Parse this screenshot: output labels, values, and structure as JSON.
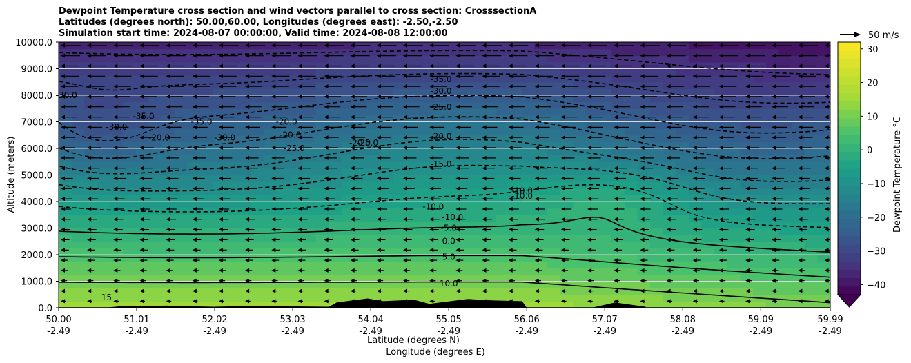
{
  "chart_data": {
    "type": "heatmap",
    "title_lines": [
      "Dewpoint Temperature cross section and wind vectors parallel to cross section: CrosssectionA",
      "Latitudes (degrees north): 50.00,60.00, Longitudes (degrees east): -2.50,-2.50",
      "Simulation start time: 2024-08-07 00:00:00, Valid time: 2024-08-08 12:00:00"
    ],
    "ylabel": "Altitude (meters)",
    "xlabel_lines": [
      "Latitude (degrees N)",
      "Longitude (degrees E)"
    ],
    "y_ticks": [
      "0.0",
      "1000.0",
      "2000.0",
      "3000.0",
      "4000.0",
      "5000.0",
      "6000.0",
      "7000.0",
      "8000.0",
      "9000.0",
      "10000.0"
    ],
    "ylim": [
      0,
      10000
    ],
    "x_ticks": [
      {
        "lat": "50.00",
        "lon": "-2.49"
      },
      {
        "lat": "51.01",
        "lon": "-2.49"
      },
      {
        "lat": "52.02",
        "lon": "-2.49"
      },
      {
        "lat": "53.03",
        "lon": "-2.49"
      },
      {
        "lat": "54.04",
        "lon": "-2.49"
      },
      {
        "lat": "55.05",
        "lon": "-2.49"
      },
      {
        "lat": "56.06",
        "lon": "-2.49"
      },
      {
        "lat": "57.07",
        "lon": "-2.49"
      },
      {
        "lat": "58.08",
        "lon": "-2.49"
      },
      {
        "lat": "59.09",
        "lon": "-2.49"
      },
      {
        "lat": "59.99",
        "lon": "-2.49"
      }
    ],
    "xlim": [
      50.0,
      59.99
    ],
    "colorbar": {
      "label": "Dewpoint Temperature $^\\circ$C",
      "ticks": [
        "30",
        "20",
        "10",
        "0",
        "−10",
        "−20",
        "−30",
        "−40"
      ],
      "range": [
        -43,
        32
      ],
      "extend": "min"
    },
    "quiver_key": "50 m/s",
    "contour_labels": [
      "-35.0",
      "-30.0",
      "-25.0",
      "-20.0",
      "-15.0",
      "-10.0",
      "-10.0",
      "-5.0",
      "0.0",
      "5.0",
      "10.0",
      "15",
      "-30.0",
      "-30.0",
      "-10.0",
      "-20.0",
      "-20.0",
      "-25.0",
      "-35.0",
      "-30.0",
      "-35.0",
      "-20.0",
      "-25.0",
      "-20.0",
      "-10.0"
    ],
    "grid": "horizontal",
    "legend": "none",
    "colormap_stops": [
      {
        "value": -43,
        "color": "#440154"
      },
      {
        "value": -35,
        "color": "#46327e"
      },
      {
        "value": -25,
        "color": "#365c8d"
      },
      {
        "value": -15,
        "color": "#277f8e"
      },
      {
        "value": -5,
        "color": "#1fa187"
      },
      {
        "value": 5,
        "color": "#4ac16d"
      },
      {
        "value": 15,
        "color": "#a0da39"
      },
      {
        "value": 32,
        "color": "#fde725"
      }
    ]
  }
}
